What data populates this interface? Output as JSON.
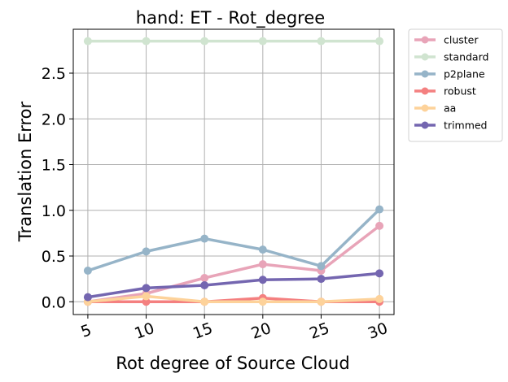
{
  "chart_data": {
    "type": "line",
    "title": "hand: ET - Rot_degree",
    "xlabel": "Rot degree of Source Cloud",
    "ylabel": "Translation Error",
    "x": [
      5,
      10,
      15,
      20,
      25,
      30
    ],
    "x_tick_labels": [
      "5",
      "10",
      "15",
      "20",
      "25",
      "30"
    ],
    "y_ticks": [
      0.0,
      0.5,
      1.0,
      1.5,
      2.0,
      2.5
    ],
    "y_tick_labels": [
      "0.0",
      "0.5",
      "1.0",
      "1.5",
      "2.0",
      "2.5"
    ],
    "ylim": [
      -0.14,
      2.98
    ],
    "grid": true,
    "legend_position": "outside-top-right",
    "series": [
      {
        "name": "cluster",
        "color": "#e8a4b8",
        "values": [
          0.0,
          0.09,
          0.26,
          0.41,
          0.34,
          0.83
        ]
      },
      {
        "name": "standard",
        "color": "#d0e4d0",
        "values": [
          2.85,
          2.85,
          2.85,
          2.85,
          2.85,
          2.85
        ]
      },
      {
        "name": "p2plane",
        "color": "#96b4c8",
        "values": [
          0.34,
          0.55,
          0.69,
          0.57,
          0.39,
          1.01
        ]
      },
      {
        "name": "robust",
        "color": "#f48080",
        "values": [
          0.0,
          0.0,
          0.0,
          0.04,
          0.0,
          0.0
        ]
      },
      {
        "name": "aa",
        "color": "#fdd29a",
        "values": [
          0.0,
          0.06,
          0.0,
          0.0,
          0.0,
          0.03
        ]
      },
      {
        "name": "trimmed",
        "color": "#7466b0",
        "values": [
          0.05,
          0.15,
          0.18,
          0.24,
          0.25,
          0.31
        ]
      }
    ]
  }
}
